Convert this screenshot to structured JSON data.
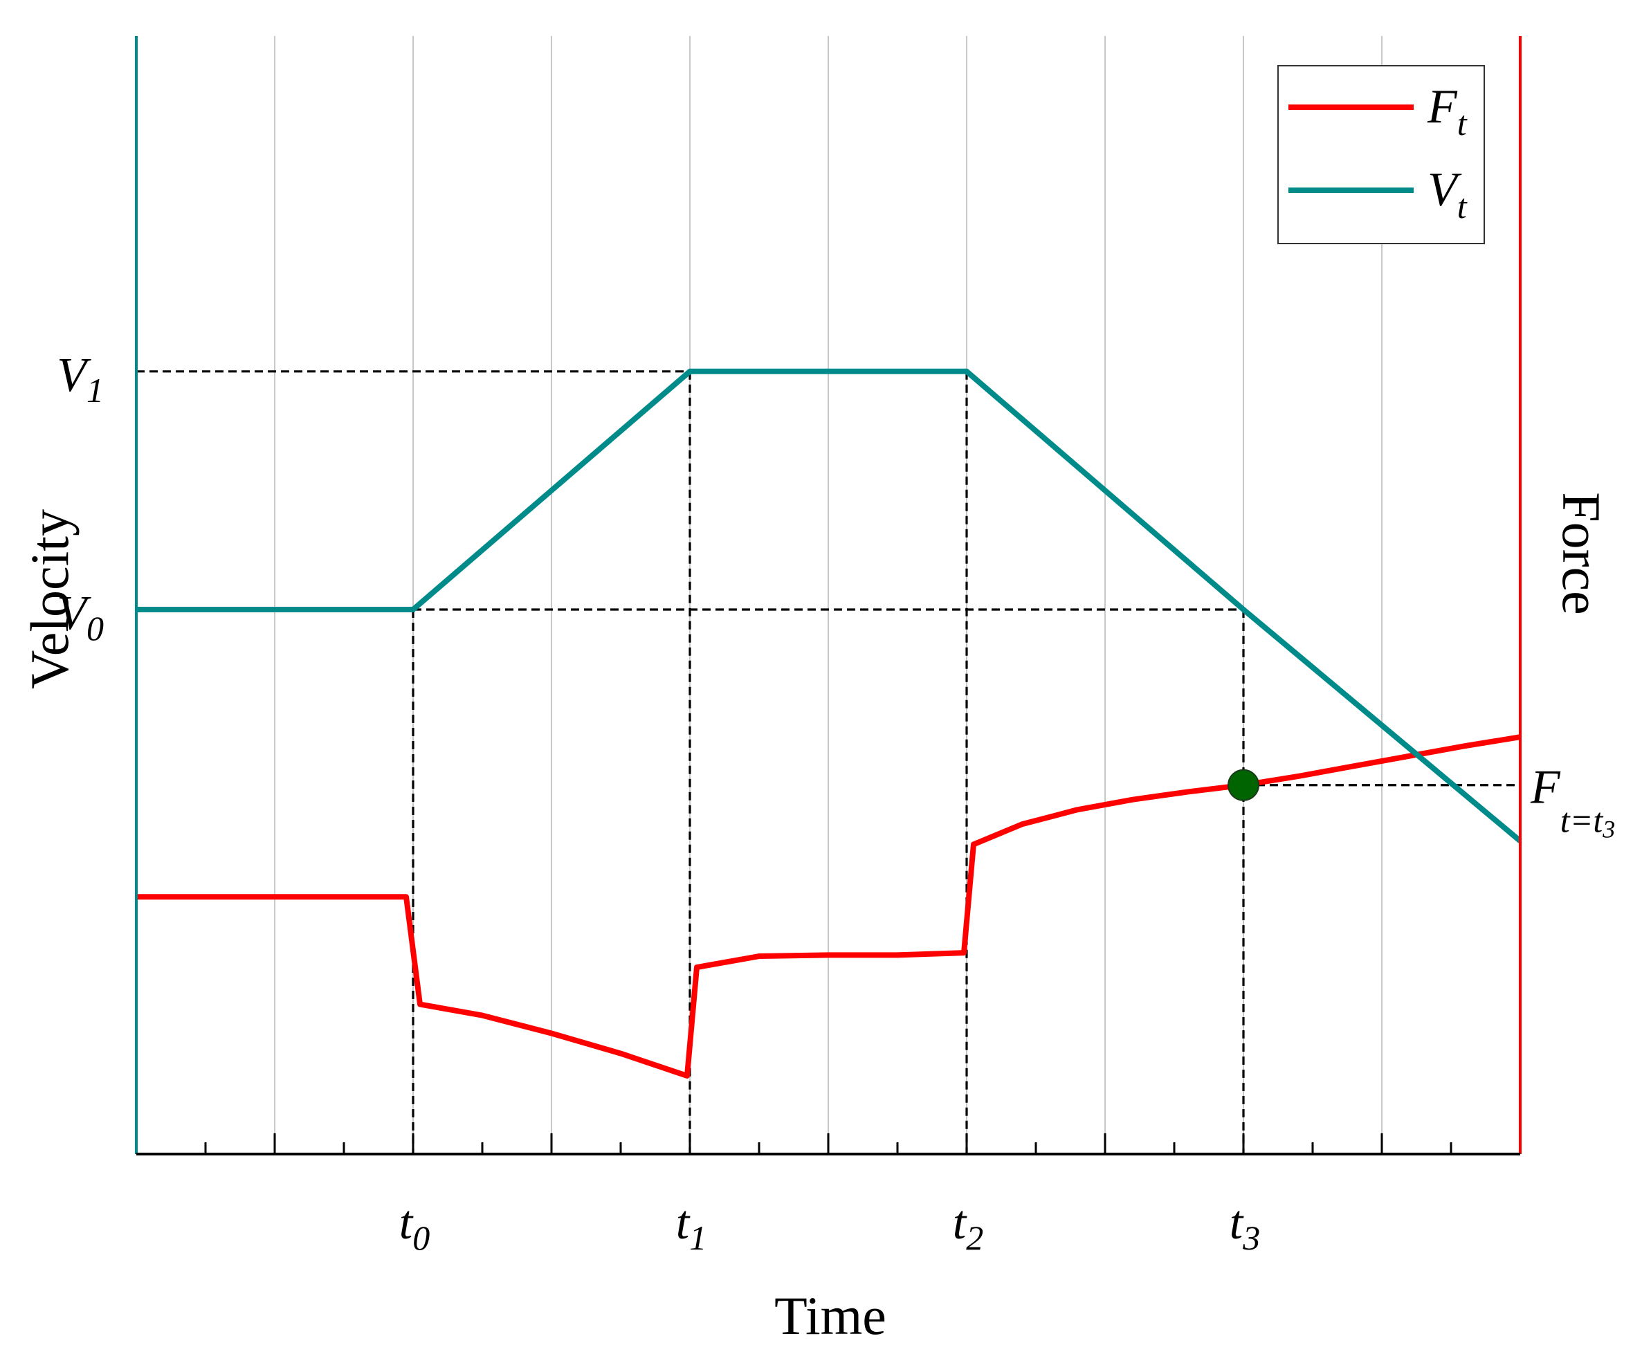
{
  "chart_data": {
    "type": "line",
    "xlabel": "Time",
    "ylabel_left": "Velocity",
    "ylabel_right": "Force",
    "x_domain": [
      0,
      10
    ],
    "left_ylim": [
      0,
      10
    ],
    "right_ylim": [
      0,
      10
    ],
    "x_ticks": [
      {
        "x": 2,
        "main": "t",
        "sub": "0"
      },
      {
        "x": 4,
        "main": "t",
        "sub": "1"
      },
      {
        "x": 6,
        "main": "t",
        "sub": "2"
      },
      {
        "x": 8,
        "main": "t",
        "sub": "3"
      }
    ],
    "left_ticks": [
      {
        "y": 7.0,
        "main": "V",
        "sub": "1"
      },
      {
        "y": 4.87,
        "main": "V",
        "sub": "0"
      }
    ],
    "right_ticks": [
      {
        "y": 3.3,
        "main": "F",
        "sub": "t=t",
        "subsub": "3"
      }
    ],
    "grid": "vertical",
    "legend_position": "top-right",
    "series": [
      {
        "name": "F",
        "name_sub": "t",
        "axis": "right",
        "color": "#ff0000",
        "x": [
          0,
          1.95,
          2.05,
          2.5,
          3.0,
          3.5,
          3.98,
          4.05,
          4.5,
          5.0,
          5.5,
          5.98,
          6.05,
          6.4,
          6.8,
          7.2,
          7.6,
          8.0,
          8.4,
          8.8,
          9.2,
          9.6,
          10.0
        ],
        "y": [
          2.3,
          2.3,
          1.34,
          1.24,
          1.08,
          0.9,
          0.7,
          1.67,
          1.77,
          1.78,
          1.78,
          1.8,
          2.77,
          2.95,
          3.08,
          3.17,
          3.24,
          3.3,
          3.38,
          3.47,
          3.56,
          3.65,
          3.73
        ]
      },
      {
        "name": "V",
        "name_sub": "t",
        "axis": "left",
        "color": "#008b8b",
        "x": [
          0,
          2,
          4,
          6,
          8,
          10
        ],
        "y": [
          4.87,
          4.87,
          7.0,
          7.0,
          4.87,
          2.8
        ]
      }
    ],
    "markers": [
      {
        "x": 8,
        "y": 3.3,
        "color": "#006400"
      }
    ],
    "axis_colors": {
      "left": "#008b8b",
      "right": "#ff0000",
      "bottom": "#000000"
    }
  }
}
